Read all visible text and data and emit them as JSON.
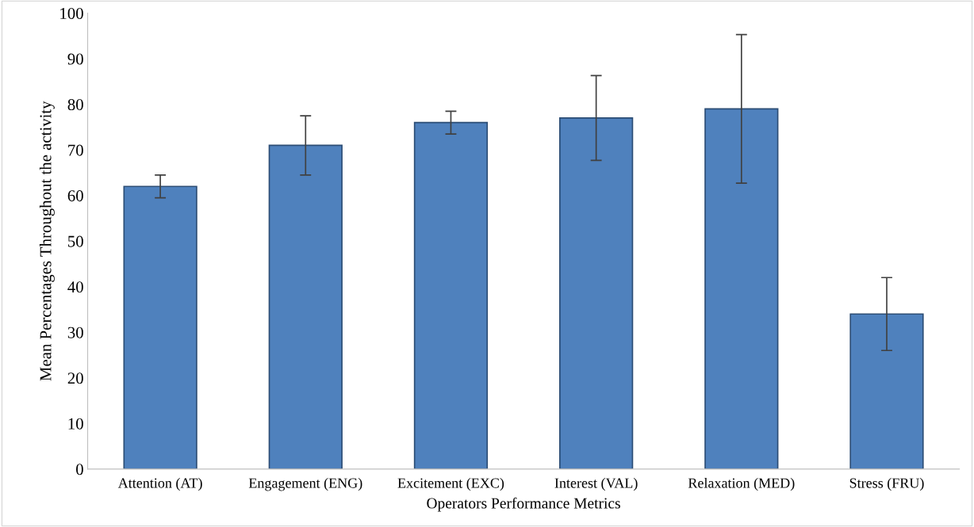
{
  "chart_data": {
    "type": "bar",
    "xlabel": "Operators Performance Metrics",
    "ylabel": "Mean Percentages Throughout the activity",
    "categories": [
      "Attention (AT)",
      "Engagement (ENG)",
      "Excitement (EXC)",
      "Interest (VAL)",
      "Relaxation (MED)",
      "Stress (FRU)"
    ],
    "values": [
      62,
      71,
      76,
      77,
      79,
      34
    ],
    "errors": [
      2.5,
      6.5,
      2.5,
      9.3,
      16.3,
      8
    ],
    "color": "#4f81bd",
    "ylim": [
      0,
      100
    ],
    "yticks": [
      0,
      10,
      20,
      30,
      40,
      50,
      60,
      70,
      80,
      90,
      100
    ],
    "grid": false
  }
}
